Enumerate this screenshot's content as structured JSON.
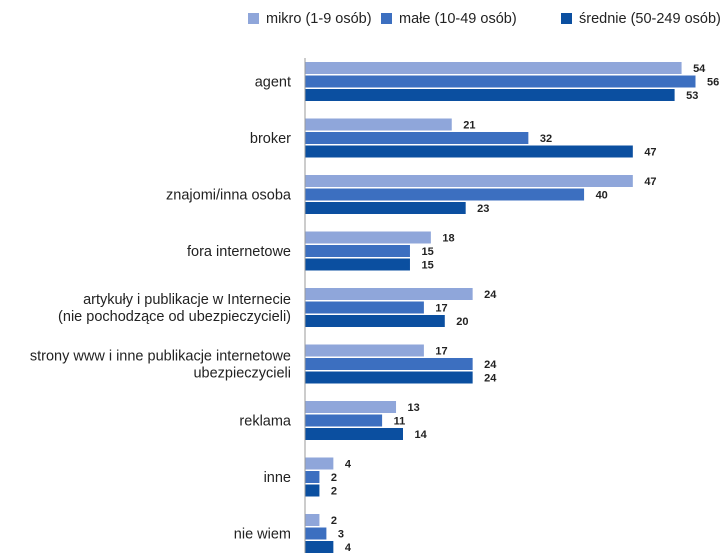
{
  "chart_data": {
    "type": "bar",
    "orientation": "horizontal",
    "categories": [
      "agent",
      "broker",
      "znajomi/inna osoba",
      "fora internetowe",
      "artykuły i publikacje w Internecie\n(nie pochodzące od ubezpieczycieli)",
      "strony www i inne publikacje internetowe\nubezpieczycieli",
      "reklama",
      "inne",
      "nie wiem"
    ],
    "series": [
      {
        "name": "mikro (1-9 osób)",
        "color": "#8FA6DA",
        "values": [
          54,
          21,
          47,
          18,
          24,
          17,
          13,
          4,
          2
        ]
      },
      {
        "name": "małe (10-49 osób)",
        "color": "#3C6FC0",
        "values": [
          56,
          32,
          40,
          15,
          17,
          24,
          11,
          2,
          3
        ]
      },
      {
        "name": "średnie (50-249 osób)",
        "color": "#0B4FA0",
        "values": [
          53,
          47,
          23,
          15,
          20,
          24,
          14,
          2,
          4
        ]
      }
    ],
    "xlim": [
      0,
      56
    ],
    "legend_position": "top-right",
    "grid": false
  }
}
